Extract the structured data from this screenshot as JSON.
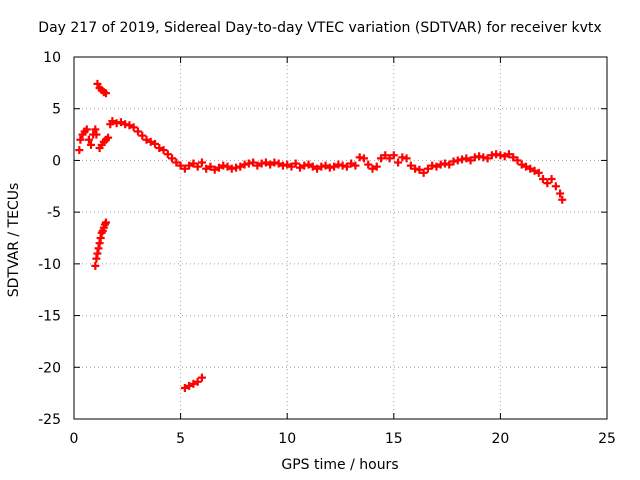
{
  "chart_data": {
    "type": "scatter",
    "title": "Day 217 of 2019, Sidereal Day-to-day VTEC variation (SDTVAR) for receiver kvtx",
    "xlabel": "GPS time / hours",
    "ylabel": "SDTVAR / TECUs",
    "xlim": [
      0,
      25
    ],
    "ylim": [
      -25,
      10
    ],
    "xticks": [
      0,
      5,
      10,
      15,
      20,
      25
    ],
    "yticks": [
      -25,
      -20,
      -15,
      -10,
      -5,
      0,
      5,
      10
    ],
    "grid": true,
    "series": [
      {
        "name": "SDTVAR",
        "color": "#ff0000",
        "marker": "+",
        "x": [
          0.25,
          0.3,
          0.4,
          0.5,
          0.6,
          0.7,
          0.8,
          0.9,
          1.0,
          1.05,
          1.0,
          1.05,
          1.1,
          1.15,
          1.2,
          1.25,
          1.3,
          1.35,
          1.4,
          1.45,
          1.5,
          1.1,
          1.2,
          1.3,
          1.4,
          1.5,
          1.2,
          1.3,
          1.4,
          1.5,
          1.6,
          1.7,
          1.8,
          2.0,
          2.2,
          2.4,
          2.6,
          2.8,
          3.0,
          3.2,
          3.4,
          3.6,
          3.8,
          4.0,
          4.2,
          4.4,
          4.6,
          4.8,
          5.0,
          5.2,
          5.4,
          5.6,
          5.8,
          6.0,
          6.2,
          6.4,
          6.6,
          6.8,
          7.0,
          7.2,
          7.4,
          7.6,
          7.8,
          8.0,
          8.2,
          8.4,
          8.6,
          8.8,
          9.0,
          9.2,
          9.4,
          9.6,
          9.8,
          10.0,
          10.2,
          10.4,
          10.6,
          10.8,
          11.0,
          11.2,
          11.4,
          11.6,
          11.8,
          12.0,
          12.2,
          12.4,
          12.6,
          12.8,
          13.0,
          13.2,
          13.4,
          13.6,
          13.8,
          14.0,
          14.2,
          14.4,
          14.6,
          14.8,
          15.0,
          15.2,
          15.4,
          15.6,
          15.8,
          16.0,
          16.2,
          16.4,
          16.6,
          16.8,
          17.0,
          17.2,
          17.4,
          17.6,
          17.8,
          18.0,
          18.2,
          18.4,
          18.6,
          18.8,
          19.0,
          19.2,
          19.4,
          19.6,
          19.8,
          20.0,
          20.2,
          20.4,
          20.6,
          20.8,
          21.0,
          21.2,
          21.4,
          21.6,
          21.8,
          22.0,
          22.2,
          22.4,
          22.6,
          22.8,
          22.9,
          5.2,
          5.4,
          5.6,
          5.8,
          6.0
        ],
        "y": [
          1.0,
          2.0,
          2.5,
          2.8,
          3.0,
          2.0,
          1.5,
          2.5,
          3.0,
          2.5,
          -10.2,
          -9.5,
          -9.0,
          -8.5,
          -8.0,
          -7.5,
          -7.0,
          -6.8,
          -6.5,
          -6.2,
          -6.0,
          7.4,
          7.0,
          6.8,
          6.6,
          6.5,
          1.2,
          1.5,
          1.8,
          2.0,
          2.2,
          3.5,
          3.8,
          3.6,
          3.7,
          3.5,
          3.4,
          3.2,
          2.8,
          2.4,
          2.0,
          1.8,
          1.6,
          1.2,
          1.0,
          0.6,
          0.2,
          -0.2,
          -0.5,
          -0.8,
          -0.5,
          -0.3,
          -0.6,
          -0.2,
          -0.8,
          -0.6,
          -0.9,
          -0.7,
          -0.5,
          -0.6,
          -0.8,
          -0.7,
          -0.6,
          -0.4,
          -0.3,
          -0.2,
          -0.5,
          -0.3,
          -0.2,
          -0.4,
          -0.2,
          -0.3,
          -0.5,
          -0.4,
          -0.6,
          -0.3,
          -0.7,
          -0.5,
          -0.4,
          -0.6,
          -0.8,
          -0.6,
          -0.5,
          -0.7,
          -0.6,
          -0.4,
          -0.5,
          -0.6,
          -0.3,
          -0.5,
          0.3,
          0.2,
          -0.4,
          -0.8,
          -0.6,
          0.2,
          0.5,
          0.2,
          0.5,
          -0.2,
          0.3,
          0.2,
          -0.5,
          -0.8,
          -0.9,
          -1.2,
          -0.8,
          -0.5,
          -0.6,
          -0.4,
          -0.3,
          -0.4,
          -0.1,
          0.0,
          0.1,
          0.2,
          0.0,
          0.3,
          0.4,
          0.3,
          0.2,
          0.5,
          0.6,
          0.5,
          0.4,
          0.6,
          0.3,
          0.0,
          -0.4,
          -0.6,
          -0.8,
          -1.0,
          -1.2,
          -1.8,
          -2.2,
          -1.8,
          -2.5,
          -3.2,
          -3.8,
          -22.0,
          -21.8,
          -21.6,
          -21.4,
          -21.0
        ]
      }
    ]
  }
}
